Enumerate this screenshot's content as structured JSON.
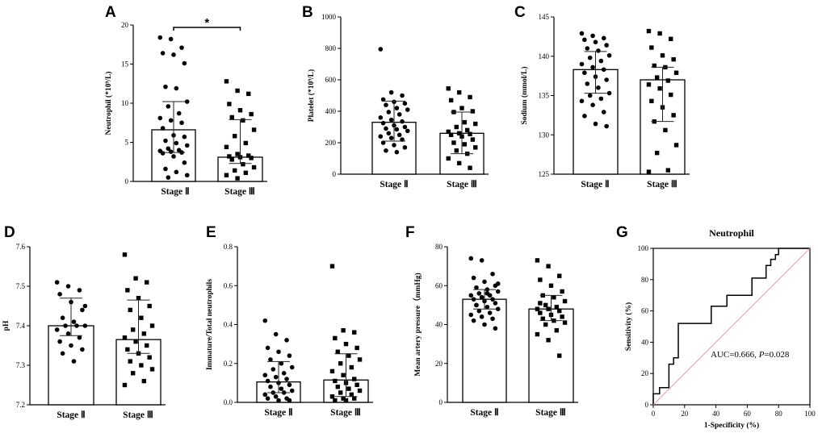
{
  "chart_data": [
    {
      "panel": "A",
      "type": "bar",
      "categories": [
        "Stage Ⅱ",
        "Stage Ⅲ"
      ],
      "ylabel": "Neutrophil (*10⁹/L)",
      "ylim": [
        0,
        20
      ],
      "yticks": [
        0,
        5,
        10,
        15,
        20
      ],
      "ytick_labels": [
        "0",
        "5",
        "10",
        "15",
        "20"
      ],
      "values": [
        6.6,
        3.1
      ],
      "error_low": [
        3.7,
        2.3
      ],
      "error_high": [
        10.2,
        7.9
      ],
      "significance": {
        "label": "*",
        "between": [
          0,
          1
        ]
      },
      "points": [
        [
          18.4,
          18.2,
          17.1,
          16.4,
          16.2,
          15.1,
          12.1,
          11.9,
          10.2,
          9.6,
          8.7,
          8.1,
          7.8,
          7.5,
          6.8,
          5.9,
          5.7,
          5.2,
          4.9,
          4.6,
          4.2,
          4.0,
          3.9,
          3.8,
          3.7,
          3.6,
          3.2,
          2.4,
          1.6,
          1.2,
          0.8,
          0.5
        ],
        [
          12.8,
          11.6,
          11.2,
          9.9,
          9.1,
          8.6,
          8.2,
          7.8,
          6.6,
          5.8,
          4.9,
          4.4,
          3.5,
          3.3,
          3.2,
          3.1,
          3.0,
          2.8,
          2.2,
          1.8,
          1.4,
          1.1,
          0.8,
          0.4
        ]
      ]
    },
    {
      "panel": "B",
      "type": "bar",
      "categories": [
        "Stage Ⅱ",
        "Stage Ⅲ"
      ],
      "ylabel": "Platelet (*10⁹/L)",
      "ylim": [
        0,
        1000
      ],
      "yticks": [
        0,
        200,
        400,
        600,
        800,
        1000
      ],
      "ytick_labels": [
        "0",
        "200",
        "400",
        "600",
        "800",
        "1000"
      ],
      "values": [
        330,
        260
      ],
      "error_low": [
        210,
        130
      ],
      "error_high": [
        465,
        395
      ],
      "points": [
        [
          795,
          520,
          500,
          475,
          460,
          450,
          440,
          420,
          410,
          395,
          380,
          360,
          345,
          335,
          325,
          310,
          300,
          290,
          285,
          275,
          260,
          250,
          240,
          230,
          220,
          200,
          185,
          170,
          150,
          140
        ],
        [
          545,
          520,
          490,
          470,
          420,
          400,
          395,
          330,
          320,
          300,
          280,
          270,
          260,
          255,
          250,
          240,
          220,
          200,
          190,
          170,
          150,
          130,
          100,
          70,
          40
        ]
      ]
    },
    {
      "panel": "C",
      "type": "bar",
      "categories": [
        "Stage Ⅱ",
        "Stage Ⅲ"
      ],
      "ylabel": "Sodium (mmol/L)",
      "ylim": [
        125,
        145
      ],
      "yticks": [
        125,
        130,
        135,
        140,
        145
      ],
      "ytick_labels": [
        "125",
        "130",
        "135",
        "140",
        "145"
      ],
      "values": [
        138.3,
        137.0
      ],
      "error_low": [
        135.3,
        131.7
      ],
      "error_high": [
        140.6,
        138.6
      ],
      "points": [
        [
          142.9,
          142.6,
          142.3,
          142.1,
          141.8,
          141.4,
          141.0,
          140.7,
          140.1,
          139.8,
          139.4,
          139.0,
          138.6,
          138.3,
          137.9,
          137.4,
          137.0,
          136.5,
          136.0,
          135.3,
          135.0,
          134.6,
          134.3,
          133.8,
          132.9,
          132.4,
          131.4,
          131.1
        ],
        [
          143.2,
          142.9,
          142.2,
          141.1,
          140.1,
          139.6,
          138.8,
          138.6,
          137.9,
          137.3,
          136.9,
          136.4,
          135.9,
          135.1,
          134.3,
          133.5,
          132.5,
          131.7,
          130.6,
          128.7,
          127.7,
          125.5,
          125.3
        ]
      ]
    },
    {
      "panel": "D",
      "type": "bar",
      "categories": [
        "Stage Ⅱ",
        "Stage Ⅲ"
      ],
      "ylabel": "pH",
      "ylim": [
        7.2,
        7.6
      ],
      "yticks": [
        7.2,
        7.3,
        7.4,
        7.5,
        7.6
      ],
      "ytick_labels": [
        "7.2",
        "7.3",
        "7.4",
        "7.5",
        "7.6"
      ],
      "values": [
        7.4,
        7.365
      ],
      "error_low": [
        7.375,
        7.33
      ],
      "error_high": [
        7.47,
        7.465
      ],
      "points": [
        [
          7.51,
          7.5,
          7.49,
          7.48,
          7.46,
          7.44,
          7.42,
          7.41,
          7.4,
          7.4,
          7.4,
          7.39,
          7.38,
          7.37,
          7.36,
          7.35,
          7.34,
          7.33,
          7.31,
          7.45
        ],
        [
          7.58,
          7.52,
          7.51,
          7.49,
          7.47,
          7.45,
          7.44,
          7.42,
          7.4,
          7.39,
          7.38,
          7.37,
          7.36,
          7.35,
          7.34,
          7.33,
          7.32,
          7.31,
          7.3,
          7.29,
          7.28,
          7.26,
          7.25
        ]
      ]
    },
    {
      "panel": "E",
      "type": "bar",
      "categories": [
        "Stage Ⅱ",
        "Stage Ⅲ"
      ],
      "ylabel": "Immature/Total neutrophils",
      "ylim": [
        0,
        0.8
      ],
      "yticks": [
        0,
        0.2,
        0.4,
        0.6,
        0.8
      ],
      "ytick_labels": [
        "0.0",
        "0.2",
        "0.4",
        "0.6",
        "0.8"
      ],
      "values": [
        0.105,
        0.115
      ],
      "error_low": [
        0.05,
        0.03
      ],
      "error_high": [
        0.21,
        0.25
      ],
      "points": [
        [
          0.42,
          0.35,
          0.32,
          0.28,
          0.26,
          0.24,
          0.22,
          0.2,
          0.18,
          0.17,
          0.15,
          0.14,
          0.13,
          0.12,
          0.11,
          0.1,
          0.09,
          0.08,
          0.07,
          0.06,
          0.05,
          0.05,
          0.04,
          0.03,
          0.02,
          0.02,
          0.01,
          0.01
        ],
        [
          0.7,
          0.37,
          0.36,
          0.33,
          0.3,
          0.28,
          0.26,
          0.24,
          0.22,
          0.2,
          0.18,
          0.16,
          0.14,
          0.12,
          0.11,
          0.1,
          0.09,
          0.08,
          0.07,
          0.06,
          0.05,
          0.04,
          0.03,
          0.02,
          0.02,
          0.01,
          0.01
        ]
      ]
    },
    {
      "panel": "F",
      "type": "bar",
      "categories": [
        "Stage Ⅱ",
        "Stage Ⅲ"
      ],
      "ylabel": "Mean artery pressure（mmHg)",
      "ylim": [
        0,
        80
      ],
      "yticks": [
        0,
        20,
        40,
        60,
        80
      ],
      "ytick_labels": [
        "0",
        "20",
        "40",
        "60",
        "80"
      ],
      "values": [
        53,
        48
      ],
      "error_low": [
        48,
        42
      ],
      "error_high": [
        58,
        55
      ],
      "points": [
        [
          74,
          73,
          66,
          64,
          62,
          60,
          59,
          58,
          57,
          56,
          55,
          55,
          54,
          53,
          53,
          52,
          51,
          50,
          49,
          48,
          47,
          46,
          45,
          44,
          43,
          42,
          40,
          38,
          50,
          56,
          61
        ],
        [
          73,
          70,
          65,
          63,
          60,
          57,
          55,
          54,
          52,
          50,
          49,
          48,
          48,
          47,
          46,
          45,
          44,
          43,
          42,
          41,
          40,
          37,
          35,
          32,
          24,
          51
        ]
      ]
    },
    {
      "panel": "G",
      "type": "line",
      "title": "Neutrophil",
      "xlabel": "1-Specificity (%)",
      "ylabel": "Sensitivity (%)",
      "xlim": [
        0,
        100
      ],
      "ylim": [
        0,
        100
      ],
      "xticks": [
        0,
        20,
        40,
        60,
        80,
        100
      ],
      "yticks": [
        0,
        20,
        40,
        60,
        80,
        100
      ],
      "xtick_labels": [
        "0",
        "20",
        "40",
        "60",
        "80",
        "100"
      ],
      "ytick_labels": [
        "0",
        "20",
        "40",
        "60",
        "80",
        "100"
      ],
      "annotation_prefix": "AUC=0.666, ",
      "annotation_p": "P",
      "annotation_suffix": "=0.028",
      "series": [
        {
          "name": "ROC",
          "color": "#000000",
          "x": [
            0,
            0,
            4,
            4,
            10,
            10,
            13,
            13,
            16,
            16,
            37,
            37,
            47,
            47,
            63,
            63,
            72,
            72,
            75,
            75,
            78,
            78,
            80,
            80,
            84,
            84,
            100
          ],
          "y": [
            0,
            7,
            7,
            11,
            11,
            26,
            26,
            30,
            30,
            52,
            52,
            63,
            63,
            70,
            70,
            81,
            81,
            89,
            89,
            93,
            93,
            96,
            96,
            100,
            100,
            100,
            100
          ]
        },
        {
          "name": "reference",
          "color": "#e8a0a0",
          "x": [
            0,
            100
          ],
          "y": [
            0,
            100
          ]
        }
      ]
    }
  ],
  "panel_letters": [
    "A",
    "B",
    "C",
    "D",
    "E",
    "F",
    "G"
  ]
}
